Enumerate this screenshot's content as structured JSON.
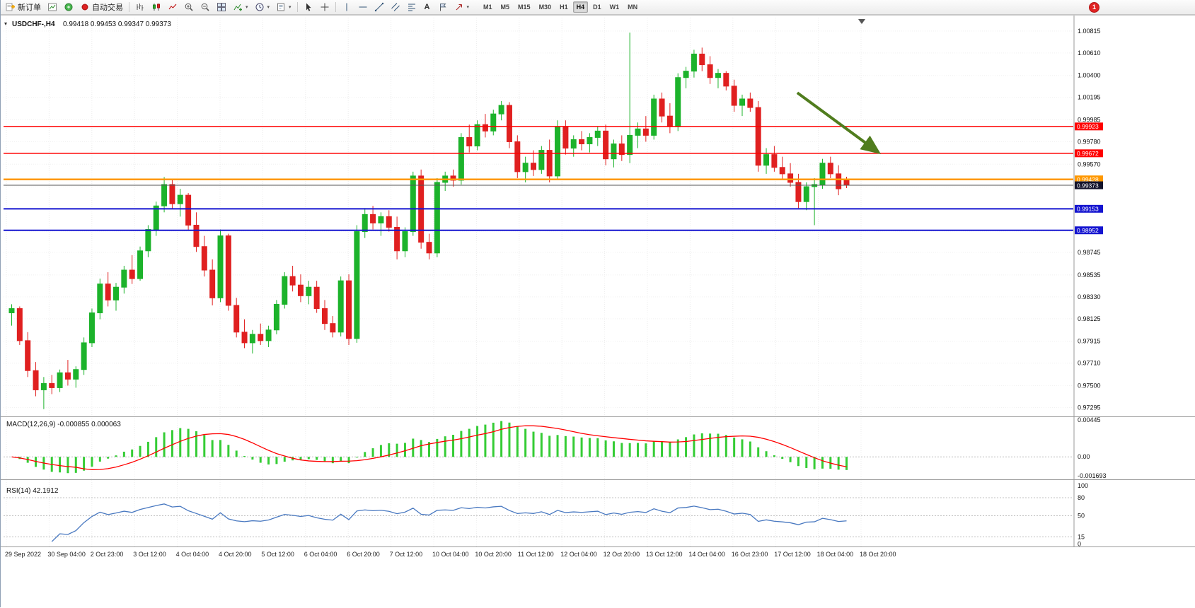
{
  "toolbar": {
    "new_order_label": "新订单",
    "auto_trading_label": "自动交易",
    "text_tool_label": "A",
    "timeframes": [
      "M1",
      "M5",
      "M15",
      "M30",
      "H1",
      "H4",
      "D1",
      "W1",
      "MN"
    ],
    "active_timeframe": "H4",
    "notification_count": "1"
  },
  "chart_data": {
    "type": "candlestick",
    "symbol": "USDCHF-",
    "period": "H4",
    "title_symbol": "USDCHF-,H4",
    "title_ohlc": "0.99418 0.99453 0.99347 0.99373",
    "ohlc_current": {
      "open": 0.99418,
      "high": 0.99453,
      "low": 0.99347,
      "close": 0.99373
    },
    "price_axis_labels": [
      "1.00815",
      "1.00610",
      "1.00400",
      "1.00195",
      "0.99985",
      "0.99780",
      "0.99570",
      "0.99360",
      "0.99155",
      "0.98945",
      "0.98745",
      "0.98535",
      "0.98330",
      "0.98125",
      "0.97915",
      "0.97710",
      "0.97500",
      "0.97295"
    ],
    "time_axis_labels": [
      "29 Sep 2022",
      "30 Sep 04:00",
      "2 Oct 23:00",
      "3 Oct 12:00",
      "4 Oct 04:00",
      "4 Oct 20:00",
      "5 Oct 12:00",
      "6 Oct 04:00",
      "6 Oct 20:00",
      "7 Oct 12:00",
      "10 Oct 04:00",
      "10 Oct 20:00",
      "11 Oct 12:00",
      "12 Oct 04:00",
      "12 Oct 20:00",
      "13 Oct 12:00",
      "14 Oct 04:00",
      "16 Oct 23:00",
      "17 Oct 12:00",
      "18 Oct 04:00",
      "18 Oct 20:00"
    ],
    "colors": {
      "bull": "#1cb32b",
      "bear": "#e02020",
      "background": "#ffffff"
    },
    "candles_ohlc": [
      [
        0.9818,
        0.9826,
        0.9806,
        0.9822
      ],
      [
        0.9822,
        0.9824,
        0.9788,
        0.9792
      ],
      [
        0.9792,
        0.98,
        0.9758,
        0.9764
      ],
      [
        0.9764,
        0.9772,
        0.974,
        0.9746
      ],
      [
        0.9746,
        0.9758,
        0.9728,
        0.9752
      ],
      [
        0.9752,
        0.976,
        0.9742,
        0.9748
      ],
      [
        0.9748,
        0.9765,
        0.9744,
        0.9762
      ],
      [
        0.9762,
        0.9774,
        0.975,
        0.9756
      ],
      [
        0.9756,
        0.9768,
        0.9748,
        0.9765
      ],
      [
        0.9765,
        0.9795,
        0.976,
        0.979
      ],
      [
        0.979,
        0.9822,
        0.9786,
        0.9818
      ],
      [
        0.9818,
        0.985,
        0.9812,
        0.9845
      ],
      [
        0.9845,
        0.9856,
        0.9824,
        0.983
      ],
      [
        0.983,
        0.9846,
        0.982,
        0.9842
      ],
      [
        0.9842,
        0.9862,
        0.9836,
        0.9858
      ],
      [
        0.9858,
        0.9872,
        0.9845,
        0.985
      ],
      [
        0.985,
        0.988,
        0.9848,
        0.9876
      ],
      [
        0.9876,
        0.99,
        0.987,
        0.9896
      ],
      [
        0.9896,
        0.9922,
        0.989,
        0.9918
      ],
      [
        0.9918,
        0.9945,
        0.9912,
        0.9938
      ],
      [
        0.9938,
        0.9942,
        0.9915,
        0.992
      ],
      [
        0.992,
        0.9934,
        0.9908,
        0.9928
      ],
      [
        0.9928,
        0.993,
        0.9895,
        0.99
      ],
      [
        0.99,
        0.9912,
        0.9875,
        0.988
      ],
      [
        0.988,
        0.989,
        0.9852,
        0.9858
      ],
      [
        0.9858,
        0.9868,
        0.9825,
        0.9832
      ],
      [
        0.9832,
        0.9896,
        0.9828,
        0.989
      ],
      [
        0.989,
        0.9892,
        0.982,
        0.9825
      ],
      [
        0.9825,
        0.9832,
        0.9795,
        0.98
      ],
      [
        0.98,
        0.9812,
        0.9785,
        0.979
      ],
      [
        0.979,
        0.9802,
        0.978,
        0.9798
      ],
      [
        0.9798,
        0.9808,
        0.9788,
        0.9792
      ],
      [
        0.9792,
        0.9806,
        0.9786,
        0.9802
      ],
      [
        0.9802,
        0.983,
        0.9798,
        0.9826
      ],
      [
        0.9826,
        0.9856,
        0.9822,
        0.9852
      ],
      [
        0.9852,
        0.9862,
        0.9838,
        0.9844
      ],
      [
        0.9844,
        0.9854,
        0.9828,
        0.9834
      ],
      [
        0.9834,
        0.9848,
        0.9826,
        0.9842
      ],
      [
        0.9842,
        0.9848,
        0.9818,
        0.9822
      ],
      [
        0.9822,
        0.983,
        0.9802,
        0.9808
      ],
      [
        0.9808,
        0.9815,
        0.9795,
        0.98
      ],
      [
        0.98,
        0.9852,
        0.9796,
        0.9848
      ],
      [
        0.9848,
        0.9854,
        0.9788,
        0.9794
      ],
      [
        0.9794,
        0.99,
        0.979,
        0.9894
      ],
      [
        0.9894,
        0.9916,
        0.9888,
        0.991
      ],
      [
        0.991,
        0.9918,
        0.9896,
        0.9902
      ],
      [
        0.9902,
        0.9912,
        0.989,
        0.9908
      ],
      [
        0.9908,
        0.9914,
        0.9894,
        0.9898
      ],
      [
        0.9898,
        0.9908,
        0.9868,
        0.9876
      ],
      [
        0.9876,
        0.9898,
        0.987,
        0.9894
      ],
      [
        0.9894,
        0.995,
        0.989,
        0.9946
      ],
      [
        0.9946,
        0.9952,
        0.9878,
        0.9884
      ],
      [
        0.9884,
        0.9892,
        0.9868,
        0.9874
      ],
      [
        0.9874,
        0.9944,
        0.987,
        0.994
      ],
      [
        0.994,
        0.995,
        0.9932,
        0.9946
      ],
      [
        0.9946,
        0.9952,
        0.9936,
        0.9942
      ],
      [
        0.9942,
        0.9986,
        0.9938,
        0.9982
      ],
      [
        0.9982,
        0.9994,
        0.9968,
        0.9974
      ],
      [
        0.9974,
        0.9998,
        0.997,
        0.9994
      ],
      [
        0.9994,
        1.0004,
        0.9982,
        0.9988
      ],
      [
        0.9988,
        1.0008,
        0.9984,
        1.0004
      ],
      [
        1.0004,
        1.0016,
        0.9998,
        1.0012
      ],
      [
        1.0012,
        1.0015,
        0.9972,
        0.9978
      ],
      [
        0.9978,
        0.9984,
        0.9944,
        0.995
      ],
      [
        0.995,
        0.9964,
        0.994,
        0.9958
      ],
      [
        0.9958,
        0.997,
        0.9946,
        0.9952
      ],
      [
        0.9952,
        0.9974,
        0.9948,
        0.997
      ],
      [
        0.997,
        0.998,
        0.994,
        0.9946
      ],
      [
        0.9946,
        0.9998,
        0.9942,
        0.9992
      ],
      [
        0.9992,
        0.9998,
        0.9966,
        0.9972
      ],
      [
        0.9972,
        0.9984,
        0.9964,
        0.998
      ],
      [
        0.998,
        0.9988,
        0.997,
        0.9976
      ],
      [
        0.9976,
        0.9986,
        0.9968,
        0.9982
      ],
      [
        0.9982,
        0.9992,
        0.9974,
        0.9988
      ],
      [
        0.9988,
        0.9994,
        0.9956,
        0.9962
      ],
      [
        0.9962,
        0.998,
        0.9954,
        0.9976
      ],
      [
        0.9976,
        0.9984,
        0.996,
        0.9966
      ],
      [
        0.9966,
        1.008,
        0.9958,
        0.9984
      ],
      [
        0.9984,
        0.9996,
        0.9972,
        0.999
      ],
      [
        0.999,
        1.0002,
        0.9978,
        0.9984
      ],
      [
        0.9984,
        1.0022,
        0.998,
        1.0018
      ],
      [
        1.0018,
        1.0024,
        0.9996,
        1.0002
      ],
      [
        1.0002,
        1.0014,
        0.9986,
        0.9992
      ],
      [
        0.9992,
        1.0042,
        0.9988,
        1.0038
      ],
      [
        1.0038,
        1.0048,
        1.0028,
        1.0044
      ],
      [
        1.0044,
        1.0064,
        1.0038,
        1.006
      ],
      [
        1.006,
        1.0066,
        1.0044,
        1.005
      ],
      [
        1.005,
        1.0058,
        1.0032,
        1.0038
      ],
      [
        1.0038,
        1.0046,
        1.0028,
        1.0042
      ],
      [
        1.0042,
        1.0044,
        1.0026,
        1.003
      ],
      [
        1.003,
        1.0036,
        1.0006,
        1.0012
      ],
      [
        1.0012,
        1.0022,
        1.0002,
        1.0018
      ],
      [
        1.0018,
        1.0024,
        1.0006,
        1.001
      ],
      [
        1.001,
        1.0016,
        0.995,
        0.9956
      ],
      [
        0.9956,
        0.9972,
        0.9948,
        0.9966
      ],
      [
        0.9966,
        0.9974,
        0.995,
        0.9954
      ],
      [
        0.9954,
        0.9964,
        0.9942,
        0.9948
      ],
      [
        0.9948,
        0.9958,
        0.9936,
        0.994
      ],
      [
        0.994,
        0.9948,
        0.9916,
        0.9922
      ],
      [
        0.9922,
        0.994,
        0.9914,
        0.9936
      ],
      [
        0.9936,
        0.9944,
        0.99,
        0.9938
      ],
      [
        0.9938,
        0.9962,
        0.9934,
        0.9958
      ],
      [
        0.9958,
        0.9964,
        0.9944,
        0.9948
      ],
      [
        0.9948,
        0.9956,
        0.9928,
        0.9934
      ],
      [
        0.99418,
        0.99453,
        0.99347,
        0.99373
      ]
    ],
    "hlines": [
      {
        "price": 0.99923,
        "label": "0.99923",
        "color": "#ff0000",
        "width": 1.5
      },
      {
        "price": 0.99672,
        "label": "0.99672",
        "color": "#ff0000",
        "width": 1.5
      },
      {
        "price": 0.99428,
        "label": "0.99428",
        "color": "#ff9800",
        "width": 2.5
      },
      {
        "price": 0.99153,
        "label": "0.99153",
        "color": "#1515d0",
        "width": 2
      },
      {
        "price": 0.98952,
        "label": "0.98952",
        "color": "#1515d0",
        "width": 2
      }
    ],
    "current_price": {
      "value": 0.99373,
      "label": "0.99373",
      "line_color": "#555555",
      "badge_color": "#13132b"
    },
    "arrow_annotation": {
      "x1_frac": 0.742,
      "price1": 1.00238,
      "x2_frac": 0.818,
      "price2": 0.9968,
      "color": "#507d1e"
    },
    "indicators": {
      "macd": {
        "label": "MACD(12,26,9) -0.000855 0.000063",
        "values": [
          -0.000855,
          6.3e-05
        ],
        "axis_labels": [
          "0.00445",
          "0.00",
          "-0.001693"
        ],
        "hist_color": "#35cc35",
        "signal_color": "#ff0000"
      },
      "rsi": {
        "label": "RSI(14) 42.1912",
        "value": 42.1912,
        "levels": [
          80,
          50,
          15
        ],
        "axis_labels": [
          "100",
          "80",
          "50",
          "15",
          "0"
        ],
        "line_color": "#4878c0"
      }
    }
  }
}
